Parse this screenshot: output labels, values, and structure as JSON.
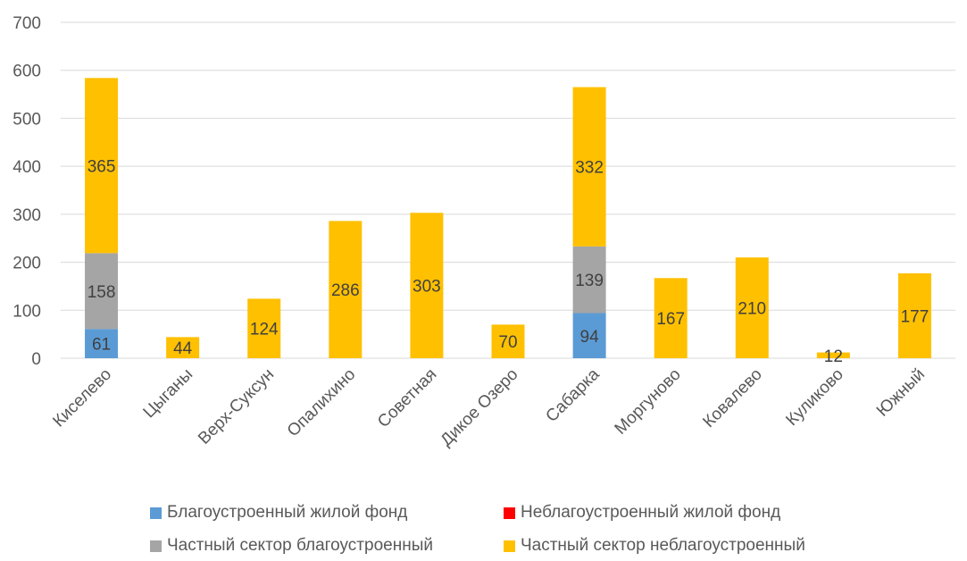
{
  "chart_data": {
    "type": "bar",
    "stacked": true,
    "categories": [
      "Киселево",
      "Цыганы",
      "Верх-Суксун",
      "Опалихино",
      "Советная",
      "Дикое Озеро",
      "Сабарка",
      "Моргуново",
      "Ковалево",
      "Куликово",
      "Южный"
    ],
    "series": [
      {
        "name": "Благоустроенный жилой фонд",
        "color": "#5B9BD5",
        "values": [
          61,
          0,
          0,
          0,
          0,
          0,
          94,
          0,
          0,
          0,
          0
        ]
      },
      {
        "name": "Неблагоустроенный  жилой фонд",
        "color": "#FF0000",
        "values": [
          0,
          0,
          0,
          0,
          0,
          0,
          0,
          0,
          0,
          0,
          0
        ]
      },
      {
        "name": "Частный сектор благоустроенный",
        "color": "#A5A5A5",
        "values": [
          158,
          0,
          0,
          0,
          0,
          0,
          139,
          0,
          0,
          0,
          0
        ]
      },
      {
        "name": "Частный сектор неблагоустроенный",
        "color": "#FFC000",
        "values": [
          365,
          44,
          124,
          286,
          303,
          70,
          332,
          167,
          210,
          12,
          177
        ]
      }
    ],
    "ylim": [
      0,
      700
    ],
    "yticks": [
      0,
      100,
      200,
      300,
      400,
      500,
      600,
      700
    ],
    "grid": true,
    "legend_position": "bottom",
    "title": "",
    "xlabel": "",
    "ylabel": ""
  }
}
